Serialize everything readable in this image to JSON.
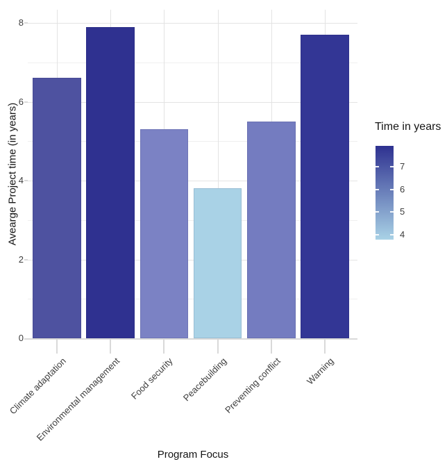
{
  "chart_data": {
    "type": "bar",
    "title": "",
    "xlabel": "Program Focus",
    "ylabel": "Avearge Project time (in years)",
    "categories": [
      "Climate adaptation",
      "Environmental management",
      "Food security",
      "Peacebuilding",
      "Preventing conflict",
      "Warning"
    ],
    "values": [
      6.6,
      7.9,
      5.3,
      3.8,
      5.5,
      7.7
    ],
    "bar_colors": [
      "#4E52A0",
      "#2F3190",
      "#7B82C4",
      "#A9D2E6",
      "#747CC0",
      "#333695"
    ],
    "ylim": [
      0,
      8.33
    ],
    "yticks_major": [
      0,
      2,
      4,
      6,
      8
    ],
    "yticks_minor": [
      1,
      3,
      5,
      7
    ],
    "grid": true,
    "legend_position": "right",
    "legend": {
      "title": "Time in years",
      "type": "gradient",
      "min": 3.8,
      "max": 7.9,
      "ticks": [
        7,
        6,
        5,
        4
      ],
      "color_high": "#2E3190",
      "color_low": "#A9D2E6"
    },
    "colors": {
      "grid_major": "#E3E3E3",
      "grid_minor": "#EFEFEF",
      "axis": "#D9D9D9",
      "tick_label": "#3D3D3D",
      "title_text": "#141414",
      "background": "#FFFFFF"
    }
  }
}
